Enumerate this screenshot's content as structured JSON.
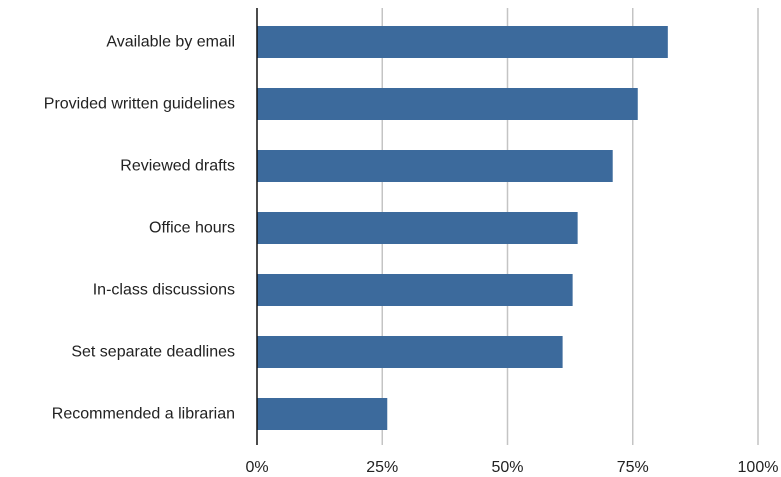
{
  "chart_data": {
    "type": "bar",
    "orientation": "horizontal",
    "categories": [
      "Available by email",
      "Provided written guidelines",
      "Reviewed drafts",
      "Office hours",
      "In-class discussions",
      "Set separate deadlines",
      "Recommended a librarian"
    ],
    "values": [
      82,
      76,
      71,
      64,
      63,
      61,
      26
    ],
    "xlim": [
      0,
      100
    ],
    "x_ticks": [
      0,
      25,
      50,
      75,
      100
    ],
    "x_tick_labels": [
      "0%",
      "25%",
      "50%",
      "75%",
      "100%"
    ],
    "grid": true,
    "legend": "none",
    "bar_color": "#3c6a9c"
  }
}
